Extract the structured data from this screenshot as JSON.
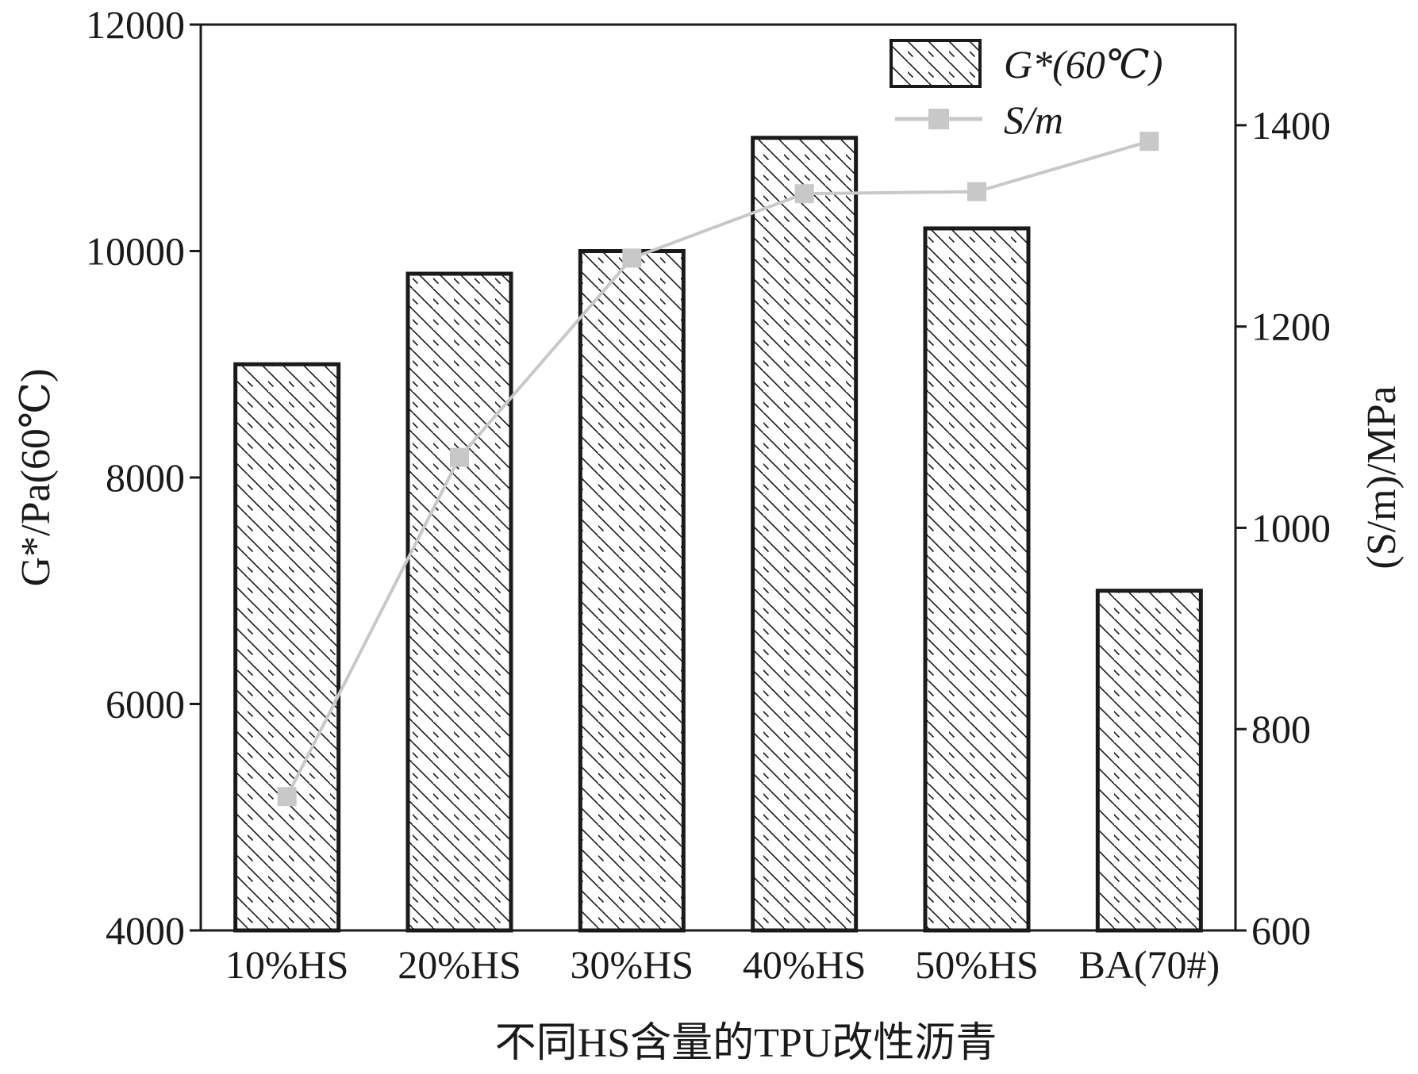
{
  "chart_data": {
    "type": "bar",
    "categories": [
      "10%HS",
      "20%HS",
      "30%HS",
      "40%HS",
      "50%HS",
      "BA(70#)"
    ],
    "series": [
      {
        "name": "G*(60℃)",
        "kind": "bar",
        "axis": "left",
        "pattern": "diagonal-hatch",
        "values": [
          9000,
          9800,
          10000,
          11000,
          10200,
          7000
        ]
      },
      {
        "name": "S/m",
        "kind": "line",
        "axis": "right",
        "marker": "square",
        "color": "#c8c8c8",
        "values": [
          733,
          1070,
          1268,
          1332,
          1334,
          1384
        ]
      }
    ],
    "xlabel": "不同HS含量的TPU改性沥青",
    "ylabel": "G*/Pa(60℃)",
    "y2label": "(S/m)/MPa",
    "ylim": [
      4000,
      12000
    ],
    "y2lim": [
      600,
      1500
    ],
    "yticks": [
      "4000",
      "6000",
      "8000",
      "10000",
      "12000"
    ],
    "y2ticks": [
      "600",
      "800",
      "1000",
      "1200",
      "1400"
    ],
    "grid": false,
    "legend_position": "top-right"
  }
}
